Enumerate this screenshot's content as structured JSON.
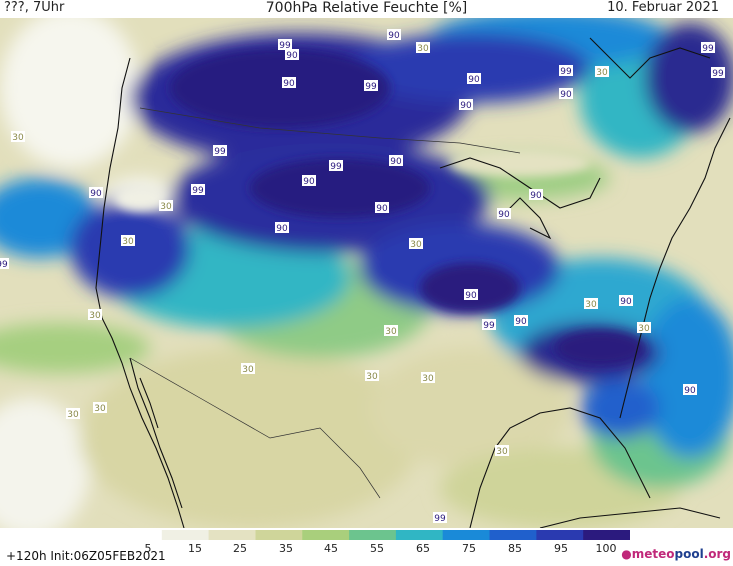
{
  "header": {
    "left": "???, 7Uhr",
    "title": "700hPa Relative Feuchte [%]",
    "date": "10. Februar 2021"
  },
  "footer": {
    "run": "+120h  Init:06Z05FEB2021",
    "brand_a": "meteo",
    "brand_b": "pool",
    "brand_c": ".org"
  },
  "colorbar": {
    "ticks": [
      "5",
      "15",
      "25",
      "35",
      "45",
      "55",
      "65",
      "75",
      "85",
      "95",
      "100"
    ],
    "colors": [
      "#ffffff",
      "#f0f0e4",
      "#e4e2c2",
      "#cfd59a",
      "#a9cf7c",
      "#6cc48e",
      "#30b6c4",
      "#1a8ad8",
      "#2060cc",
      "#2a3ab0",
      "#2b1a7e"
    ]
  },
  "contour_labels": [
    {
      "text": "99"
    },
    {
      "text": "90"
    },
    {
      "text": "90"
    },
    {
      "text": "30"
    },
    {
      "text": "90"
    },
    {
      "text": "99"
    },
    {
      "text": "99"
    },
    {
      "text": "99"
    },
    {
      "text": "90"
    },
    {
      "text": "30"
    },
    {
      "text": "90"
    },
    {
      "text": "99"
    },
    {
      "text": "90"
    },
    {
      "text": "99"
    },
    {
      "text": "90"
    },
    {
      "text": "90"
    },
    {
      "text": "30"
    },
    {
      "text": "99"
    },
    {
      "text": "90"
    },
    {
      "text": "30"
    },
    {
      "text": "99"
    },
    {
      "text": "90"
    },
    {
      "text": "90"
    },
    {
      "text": "90"
    },
    {
      "text": "90"
    },
    {
      "text": "30"
    },
    {
      "text": "30"
    },
    {
      "text": "99"
    },
    {
      "text": "90"
    },
    {
      "text": "99"
    },
    {
      "text": "90"
    },
    {
      "text": "30"
    },
    {
      "text": "90"
    },
    {
      "text": "30"
    },
    {
      "text": "30"
    },
    {
      "text": "30"
    },
    {
      "text": "30"
    },
    {
      "text": "30"
    },
    {
      "text": "30"
    },
    {
      "text": "30"
    },
    {
      "text": "30"
    },
    {
      "text": "30"
    },
    {
      "text": "90"
    },
    {
      "text": "99"
    }
  ]
}
